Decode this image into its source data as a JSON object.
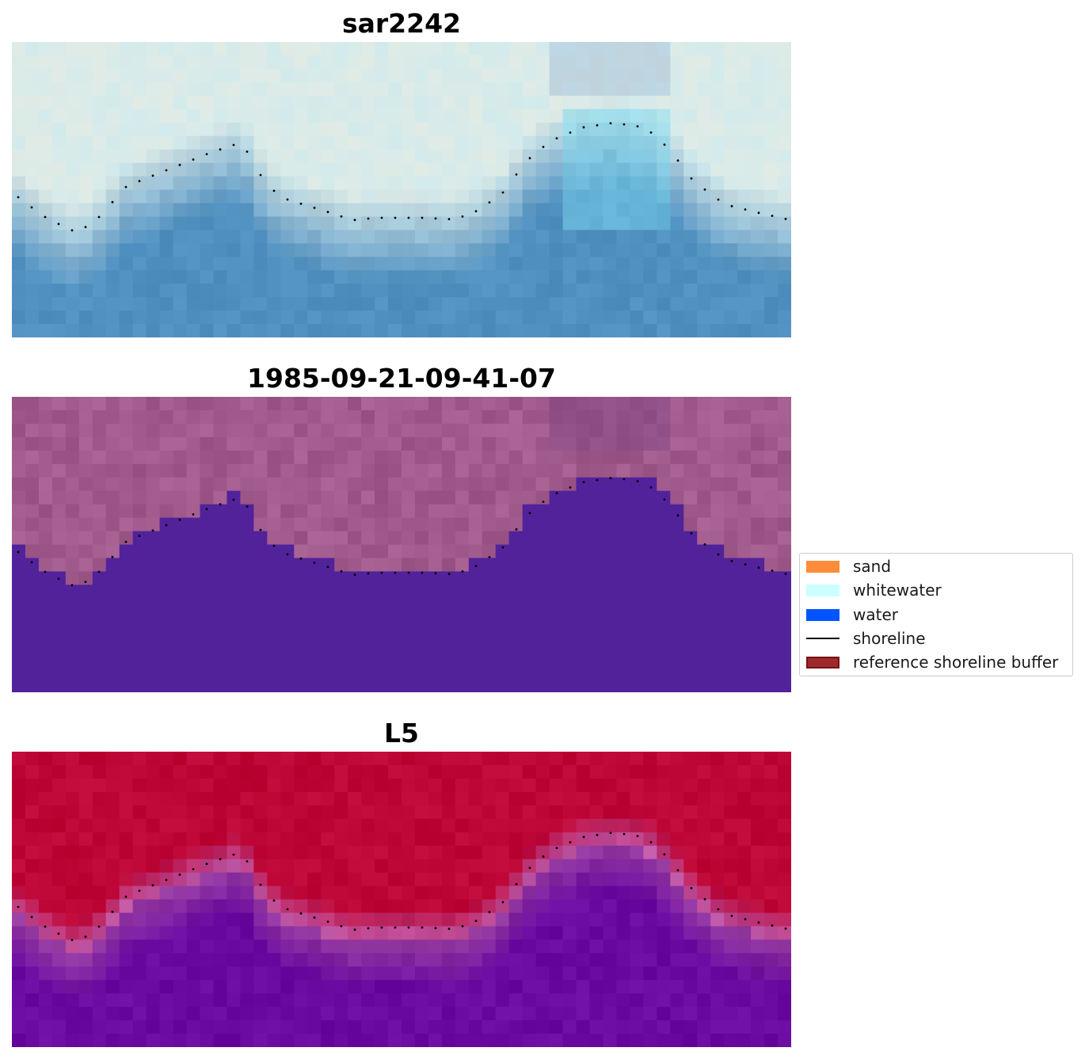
{
  "panels": [
    {
      "id": "rgb",
      "title": "sar2242"
    },
    {
      "id": "classified",
      "title": "1985-09-21-09-41-07"
    },
    {
      "id": "mndwi",
      "title": "L5"
    }
  ],
  "legend": {
    "items": [
      {
        "label": "sand",
        "kind": "patch",
        "color": "#ff8c3a"
      },
      {
        "label": "whitewater",
        "kind": "patch",
        "color": "#ccffff"
      },
      {
        "label": "water",
        "kind": "patch",
        "color": "#0055ff"
      },
      {
        "label": "shoreline",
        "kind": "line",
        "color": "#000000"
      },
      {
        "label": "reference shoreline buffer",
        "kind": "patch",
        "color": "#9e2a2b",
        "edge": "#7a1212"
      }
    ]
  },
  "colors": {
    "classified_water": "#52229b",
    "classified_land": "#a05a8c",
    "mndwi_high": "#bd0636",
    "mndwi_low": "#6a0aa0",
    "rgb_water": "#4f90c0",
    "rgb_land": "#e8f2ec"
  }
}
